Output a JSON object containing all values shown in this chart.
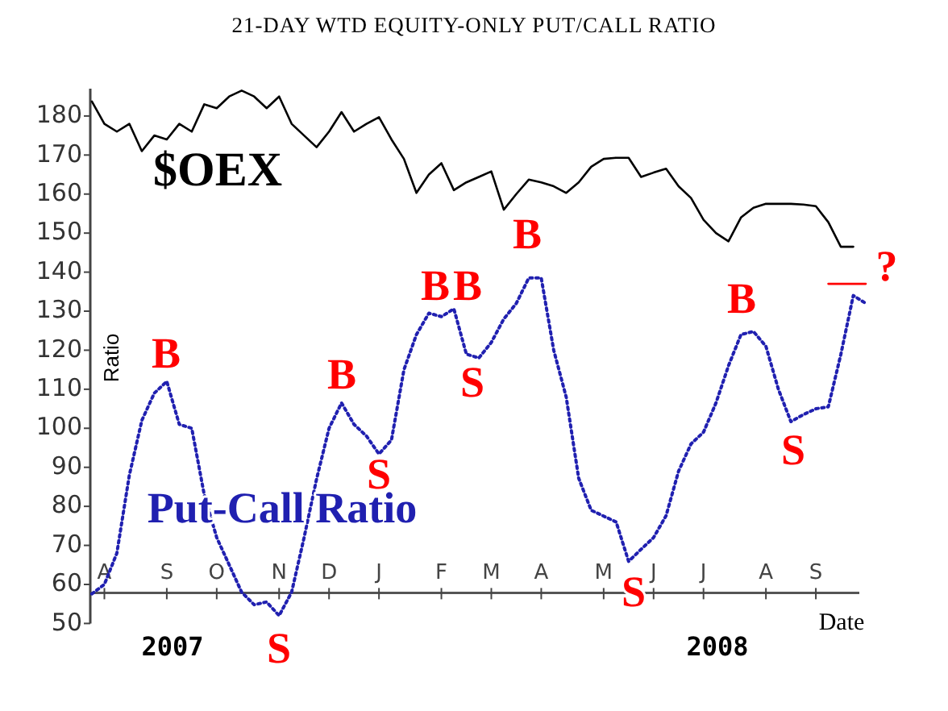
{
  "chart_data": {
    "type": "line",
    "title": "21-DAY WTD EQUITY-ONLY PUT/CALL RATIO",
    "xlabel": "Date",
    "ylabel": "Ratio",
    "categories": [
      null,
      "A",
      null,
      null,
      null,
      null,
      "S",
      null,
      null,
      null,
      "O",
      null,
      null,
      null,
      null,
      "N",
      null,
      null,
      null,
      "D",
      null,
      null,
      null,
      "J",
      null,
      null,
      null,
      null,
      "F",
      null,
      null,
      null,
      "M",
      null,
      null,
      null,
      "A",
      null,
      null,
      null,
      null,
      "M",
      null,
      null,
      null,
      "J",
      null,
      null,
      null,
      "J",
      null,
      null,
      null,
      null,
      "A",
      null,
      null,
      null,
      "S",
      null,
      null,
      null,
      null
    ],
    "ylim": [
      50,
      187
    ],
    "yticks": [
      50,
      60,
      70,
      80,
      90,
      100,
      110,
      120,
      130,
      140,
      150,
      160,
      170,
      180
    ],
    "series": [
      {
        "name": "$OEX",
        "color": "#000000",
        "line_style": "solid",
        "values": [
          183.7,
          178,
          176,
          178,
          171,
          175,
          174,
          178,
          176,
          183,
          182,
          185,
          186.5,
          185,
          182,
          185,
          178,
          175,
          172,
          176,
          181,
          176,
          178,
          179.7,
          174,
          169,
          160.3,
          165,
          167.9,
          161,
          163,
          164.4,
          165.8,
          156,
          160,
          163.7,
          163,
          162,
          160.3,
          163,
          167,
          169,
          169.3,
          169.3,
          164.4,
          165.5,
          166.5,
          162,
          159,
          153.4,
          150,
          147.9,
          154,
          156.5,
          157.5,
          157.5,
          157.5,
          157.3,
          156.9,
          152.8,
          146.5,
          146.5,
          null
        ]
      },
      {
        "name": "Put-Call Ratio",
        "color": "#2020b0",
        "line_style": "dotted",
        "values": [
          57.6,
          60,
          68,
          88,
          102,
          109,
          112,
          101,
          100,
          83,
          72,
          65,
          58,
          54.8,
          55.5,
          52,
          58,
          72,
          87,
          100,
          106.5,
          101,
          98,
          93.4,
          97,
          115,
          124,
          129.5,
          128.6,
          130.6,
          119,
          118,
          122,
          128,
          132,
          138.5,
          138.5,
          120,
          108,
          87.2,
          79,
          77.5,
          76,
          65.9,
          69,
          72,
          77.6,
          89,
          96,
          99,
          106.5,
          116,
          124,
          124.8,
          121,
          110,
          101.7,
          103.5,
          105,
          105.5,
          118.9,
          134,
          132
        ]
      },
      {
        "color": "#ff0000",
        "line_style": "solid",
        "values": [
          null,
          null,
          null,
          null,
          null,
          null,
          null,
          null,
          null,
          null,
          null,
          null,
          null,
          null,
          null,
          null,
          null,
          null,
          null,
          null,
          null,
          null,
          null,
          null,
          null,
          null,
          null,
          null,
          null,
          null,
          null,
          null,
          null,
          null,
          null,
          null,
          null,
          null,
          null,
          null,
          null,
          null,
          null,
          null,
          null,
          null,
          null,
          null,
          null,
          null,
          null,
          null,
          null,
          null,
          null,
          null,
          null,
          null,
          null,
          137,
          137,
          137,
          137
        ]
      }
    ],
    "annotations": [
      "B",
      "S",
      "B",
      "S",
      "B",
      "B",
      "S",
      "B",
      "S",
      "B",
      "S",
      "?",
      "2007",
      "2008"
    ]
  }
}
